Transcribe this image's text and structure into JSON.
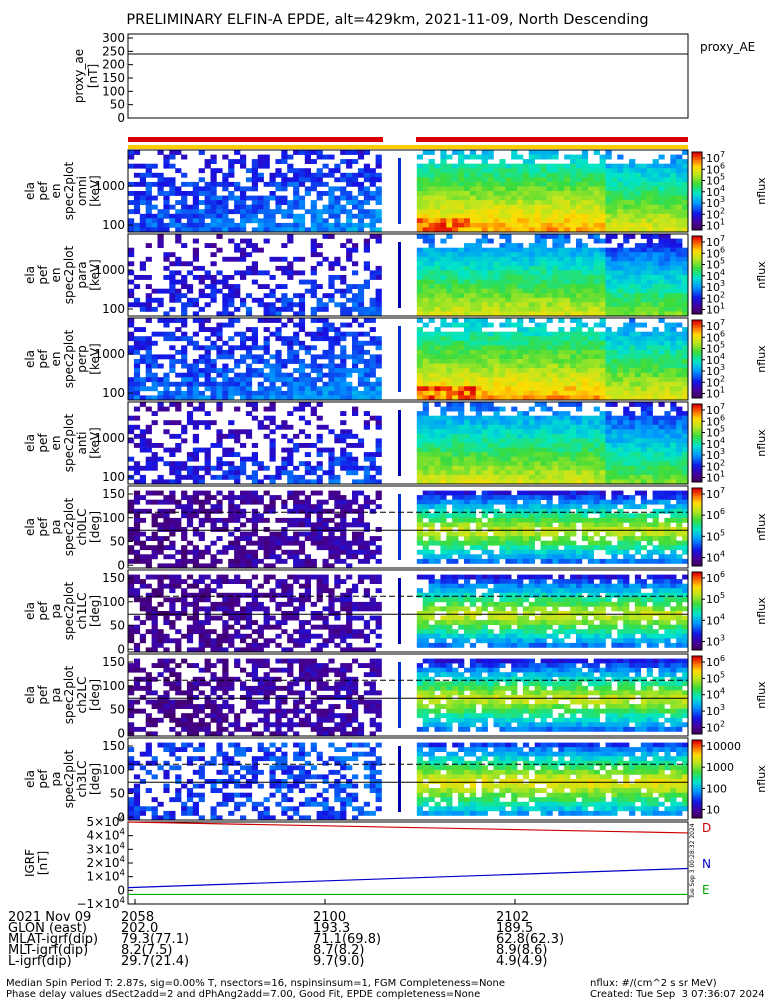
{
  "title": "PRELIMINARY ELFIN-A EPDE, alt=429km, 2021-11-09, North Descending",
  "proxy_panel": {
    "ylabel_lines": [
      "proxy_ae",
      "[nT]"
    ],
    "yticks": [
      "300",
      "250",
      "200",
      "150",
      "100",
      "50",
      "0"
    ],
    "legend": "proxy_AE"
  },
  "panels": [
    {
      "ylabel_lines": [
        "ela",
        "pef",
        "en",
        "spec2plot",
        "omni",
        "[keV]"
      ],
      "yticks": [
        "1000",
        "100"
      ],
      "unit": "nflux",
      "cbar": [
        "10^7",
        "10^6",
        "10^5",
        "10^4",
        "10^3",
        "10^2",
        "10^1"
      ]
    },
    {
      "ylabel_lines": [
        "ela",
        "pef",
        "en",
        "spec2plot",
        "para",
        "[keV]"
      ],
      "yticks": [
        "1000",
        "100"
      ],
      "unit": "nflux",
      "cbar": [
        "10^7",
        "10^6",
        "10^5",
        "10^4",
        "10^3",
        "10^2",
        "10^1"
      ]
    },
    {
      "ylabel_lines": [
        "ela",
        "pef",
        "en",
        "spec2plot",
        "perp",
        "[keV]"
      ],
      "yticks": [
        "1000",
        "100"
      ],
      "unit": "nflux",
      "cbar": [
        "10^7",
        "10^6",
        "10^5",
        "10^4",
        "10^3",
        "10^2",
        "10^1"
      ]
    },
    {
      "ylabel_lines": [
        "ela",
        "pef",
        "en",
        "spec2plot",
        "anti",
        "[keV]"
      ],
      "yticks": [
        "1000",
        "100"
      ],
      "unit": "nflux",
      "cbar": [
        "10^7",
        "10^6",
        "10^5",
        "10^4",
        "10^3",
        "10^2",
        "10^1"
      ]
    },
    {
      "ylabel_lines": [
        "ela",
        "pef",
        "pa",
        "spec2plot",
        "ch0LC",
        "[deg]"
      ],
      "yticks": [
        "150",
        "100",
        "50",
        "0"
      ],
      "unit": "nflux",
      "cbar": [
        "10^7",
        "10^6",
        "10^5",
        "10^4"
      ]
    },
    {
      "ylabel_lines": [
        "ela",
        "pef",
        "pa",
        "spec2plot",
        "ch1LC",
        "[deg]"
      ],
      "yticks": [
        "150",
        "100",
        "50",
        "0"
      ],
      "unit": "nflux",
      "cbar": [
        "10^6",
        "10^5",
        "10^4",
        "10^3"
      ]
    },
    {
      "ylabel_lines": [
        "ela",
        "pef",
        "pa",
        "spec2plot",
        "ch2LC",
        "[deg]"
      ],
      "yticks": [
        "150",
        "100",
        "50",
        "0"
      ],
      "unit": "nflux",
      "cbar": [
        "10^6",
        "10^5",
        "10^4",
        "10^3",
        "10^2"
      ]
    },
    {
      "ylabel_lines": [
        "ela",
        "pef",
        "pa",
        "spec2plot",
        "ch3LC",
        "[deg]"
      ],
      "yticks": [
        "150",
        "100",
        "50",
        "0"
      ],
      "unit": "nflux",
      "cbar": [
        "10000",
        "1000",
        "100",
        "10"
      ]
    }
  ],
  "igrf_panel": {
    "ylabel_lines": [
      "IGRF",
      "[nT]"
    ],
    "yticks": [
      "5×10^4",
      "4×10^4",
      "3×10^4",
      "2×10^4",
      "1×10^4",
      "0",
      "−1×10^4"
    ],
    "legend": [
      "D",
      "N",
      "E"
    ],
    "colors": {
      "D": "#cc0000",
      "N": "#0000cc",
      "E": "#00aa00"
    },
    "stamp": "Tue Sep  3 00:28:32 2024"
  },
  "ephemeris": {
    "rows": [
      {
        "label": "2021 Nov 09",
        "values": [
          "2058",
          "2100",
          "2102"
        ]
      },
      {
        "label": "GLON (east)",
        "values": [
          "202.0",
          "193.3",
          "189.5"
        ]
      },
      {
        "label": "MLAT-igrf(dip)",
        "values": [
          "79.3(77.1)",
          "71.1(69.8)",
          "62.8(62.3)"
        ]
      },
      {
        "label": "MLT-igrf(dip)",
        "values": [
          "8.2(7.5)",
          "8.7(8.2)",
          "8.9(8.6)"
        ]
      },
      {
        "label": "L-igrf(dip)",
        "values": [
          "29.7(21.4)",
          "9.7(9.0)",
          "4.9(4.9)"
        ]
      }
    ]
  },
  "footer": {
    "line1": "Median Spin Period T: 2.87s, sig=0.00% T, nsectors=16, nspinsinsum=1, FGM Completeness=None",
    "line2": "Phase delay values dSect2add=2 and dPhAng2add=7.00, Good Fit, EPDE completeness=None",
    "units": "nflux: #/(cm^2 s sr MeV)",
    "created": "Created: Tue Sep  3 07:36:07 2024"
  },
  "chart_data": {
    "type": "heatmap",
    "title": "PRELIMINARY ELFIN-A EPDE, alt=429km, 2021-11-09, North Descending",
    "x_ticks": [
      "2058",
      "2100",
      "2102"
    ],
    "proxy_ae": {
      "ylim": [
        0,
        300
      ],
      "value": 240
    },
    "energy_panels_ylim_keV": [
      60,
      7000
    ],
    "pitch_angle_panels_ylim_deg": [
      0,
      180
    ],
    "colorbar_ranges": [
      [
        10,
        10000000
      ],
      [
        10,
        10000000
      ],
      [
        10,
        10000000
      ],
      [
        10,
        10000000
      ],
      [
        10000,
        10000000
      ],
      [
        1000,
        1000000
      ],
      [
        100,
        1000000
      ],
      [
        10,
        10000
      ]
    ],
    "igrf": {
      "ylim": [
        -10000,
        50000
      ],
      "D_start": 50000,
      "D_end": 42000,
      "N_start": 2000,
      "N_end": 16000,
      "E_start": -3000,
      "E_end": -3000
    }
  }
}
